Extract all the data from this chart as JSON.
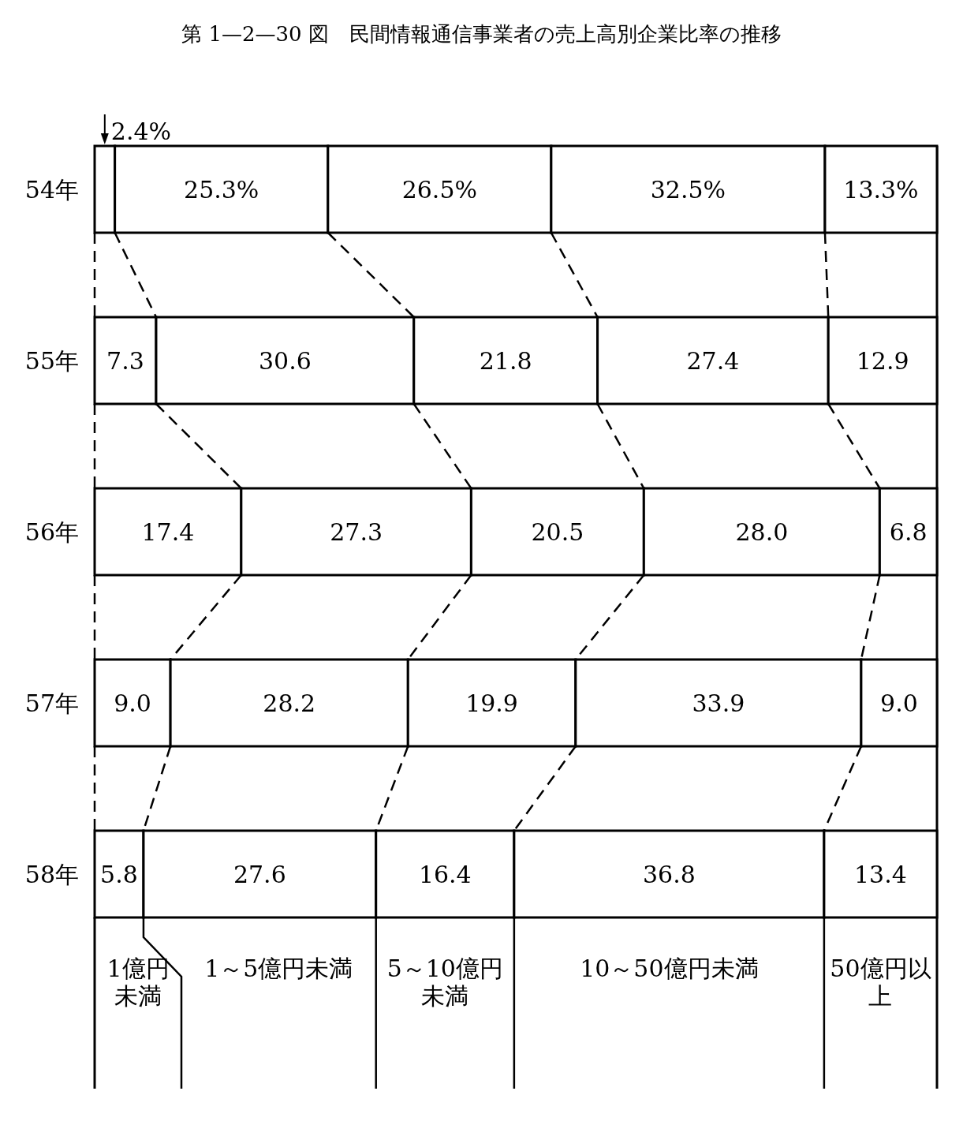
{
  "chart_data": {
    "type": "bar",
    "title": "第 1—2—30 図　民間情報通信事業者の売上高別企業比率の推移",
    "orientation": "horizontal",
    "stacked": true,
    "categories": [
      "54年",
      "55年",
      "56年",
      "57年",
      "58年"
    ],
    "xlim": [
      0,
      100
    ],
    "tick_labels": "y",
    "legend": "bottom",
    "series": [
      {
        "name": "1億円未満",
        "color": "#ffffff",
        "values": [
          2.4,
          7.3,
          17.4,
          9.0,
          5.8
        ],
        "value_labels": [
          "2.4%",
          "7.3",
          "17.4",
          "9.0",
          "5.8"
        ]
      },
      {
        "name": "1～5億円未満",
        "color": "#ffffff",
        "values": [
          25.3,
          30.6,
          27.3,
          28.2,
          27.6
        ],
        "value_labels": [
          "25.3%",
          "30.6",
          "27.3",
          "28.2",
          "27.6"
        ]
      },
      {
        "name": "5～10億円未満",
        "color": "#ffffff",
        "values": [
          26.5,
          21.8,
          20.5,
          19.9,
          16.4
        ],
        "value_labels": [
          "26.5%",
          "21.8",
          "20.5",
          "19.9",
          "16.4"
        ]
      },
      {
        "name": "10～50億円未満",
        "color": "#ffffff",
        "values": [
          32.5,
          27.4,
          28.0,
          33.9,
          36.8
        ],
        "value_labels": [
          "32.5%",
          "27.4",
          "28.0",
          "33.9",
          "36.8"
        ]
      },
      {
        "name": "50億円以上",
        "color": "#ffffff",
        "values": [
          13.3,
          12.9,
          6.8,
          9.0,
          13.4
        ],
        "value_labels": [
          "13.3%",
          "12.9",
          "6.8",
          "9.0",
          "13.4"
        ]
      }
    ]
  }
}
